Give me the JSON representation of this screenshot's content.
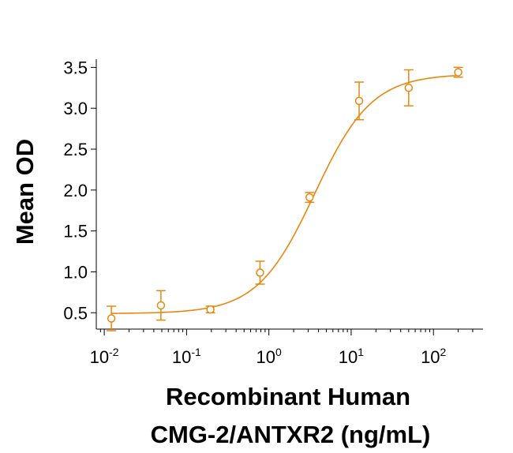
{
  "chart_data": {
    "type": "scatter",
    "title": "",
    "xlabel_line1": "Recombinant Human",
    "xlabel_line2": "CMG-2/ANTXR2 (ng/mL)",
    "ylabel": "Mean OD",
    "x_scale": "log",
    "xlim": [
      0.008,
      400
    ],
    "ylim": [
      0.3,
      3.6
    ],
    "x_ticks": [
      {
        "value": 0.01,
        "base": "10",
        "exp": "-2"
      },
      {
        "value": 0.1,
        "base": "10",
        "exp": "-1"
      },
      {
        "value": 1,
        "base": "10",
        "exp": "0"
      },
      {
        "value": 10,
        "base": "10",
        "exp": "1"
      },
      {
        "value": 100,
        "base": "10",
        "exp": "2"
      }
    ],
    "y_ticks": [
      "0.5",
      "1.0",
      "1.5",
      "2.0",
      "2.5",
      "3.0",
      "3.5"
    ],
    "grid": false,
    "legend": "none",
    "color": "#E8870E",
    "series": [
      {
        "x": [
          0.0122,
          0.0488,
          0.195,
          0.781,
          3.125,
          12.5,
          50,
          200
        ],
        "y": [
          0.43,
          0.59,
          0.54,
          0.99,
          1.91,
          3.09,
          3.25,
          3.44
        ],
        "error": [
          0.15,
          0.18,
          0.04,
          0.14,
          0.06,
          0.23,
          0.22,
          0.06
        ]
      }
    ],
    "fit_curve": {
      "bottom": 0.49,
      "top": 3.42,
      "ec50": 3.6,
      "hill": 1.25
    }
  }
}
